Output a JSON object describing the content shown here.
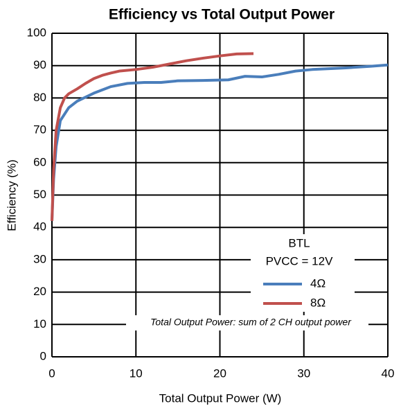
{
  "chart_data": {
    "type": "line",
    "title": "Efficiency vs Total Output Power",
    "x_label": "Total Output Power (W)",
    "y_label": "Efficiency (%)",
    "annotations": [
      "BTL",
      "PVCC = 12V",
      "Total Output Power: sum of 2 CH output power"
    ],
    "xlim": [
      0,
      40
    ],
    "xticks": [
      0,
      10,
      20,
      30,
      40
    ],
    "ylim": [
      0,
      100
    ],
    "yticks": [
      0,
      10,
      20,
      30,
      40,
      50,
      60,
      70,
      80,
      90,
      100
    ],
    "grid": true,
    "series": [
      {
        "name": "4Ω",
        "color": "#4a7ebb",
        "x": [
          0,
          0.2,
          0.5,
          1,
          2,
          3,
          5,
          7,
          9,
          11,
          13,
          15,
          18,
          21,
          23,
          25,
          27,
          29,
          31,
          35,
          38,
          40
        ],
        "values": [
          42,
          55,
          65,
          73,
          77,
          79,
          81.5,
          83.5,
          84.5,
          84.8,
          84.8,
          85.3,
          85.4,
          85.6,
          86.7,
          86.5,
          87.3,
          88.3,
          88.8,
          89.3,
          89.8,
          90.2
        ]
      },
      {
        "name": "8Ω",
        "color": "#c0504d",
        "x": [
          0,
          0.2,
          0.5,
          1,
          1.5,
          2,
          3,
          4,
          5,
          6,
          7,
          8,
          10,
          12,
          14,
          16,
          18,
          20,
          22,
          24
        ],
        "values": [
          42,
          58,
          70,
          77,
          80,
          81.3,
          82.8,
          84.5,
          86,
          87,
          87.7,
          88.3,
          88.8,
          89.5,
          90.5,
          91.5,
          92.3,
          93,
          93.6,
          93.7
        ]
      }
    ]
  }
}
